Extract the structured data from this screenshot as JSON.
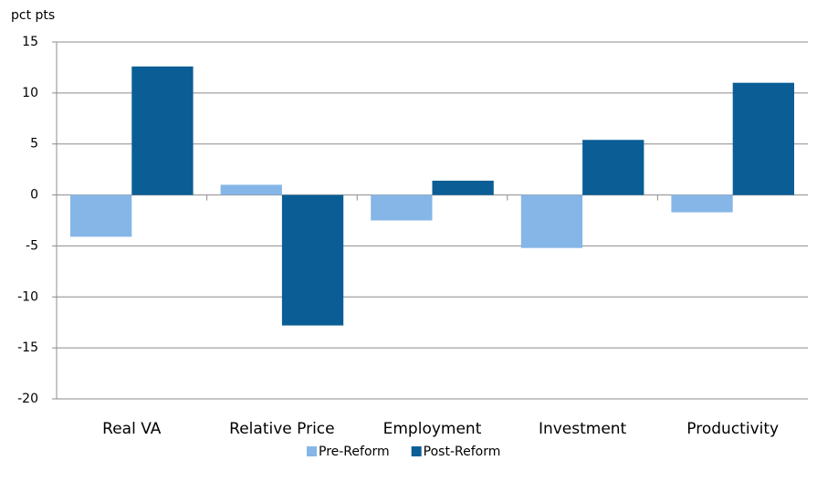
{
  "chart_data": {
    "type": "bar",
    "y_label": "pct pts",
    "categories": [
      "Real VA",
      "Relative Price",
      "Employment",
      "Investment",
      "Productivity"
    ],
    "series": [
      {
        "name": "Pre-Reform",
        "color": "#85b6e7",
        "values": [
          -4.1,
          1.0,
          -2.5,
          -5.2,
          -1.7
        ]
      },
      {
        "name": "Post-Reform",
        "color": "#0a5e95",
        "values": [
          12.6,
          -12.8,
          1.4,
          5.4,
          11.0
        ]
      }
    ],
    "ylim": [
      -20,
      15
    ],
    "yticks": [
      -20,
      -15,
      -10,
      -5,
      0,
      5,
      10,
      15
    ],
    "grid": true,
    "legend": "bottom"
  }
}
